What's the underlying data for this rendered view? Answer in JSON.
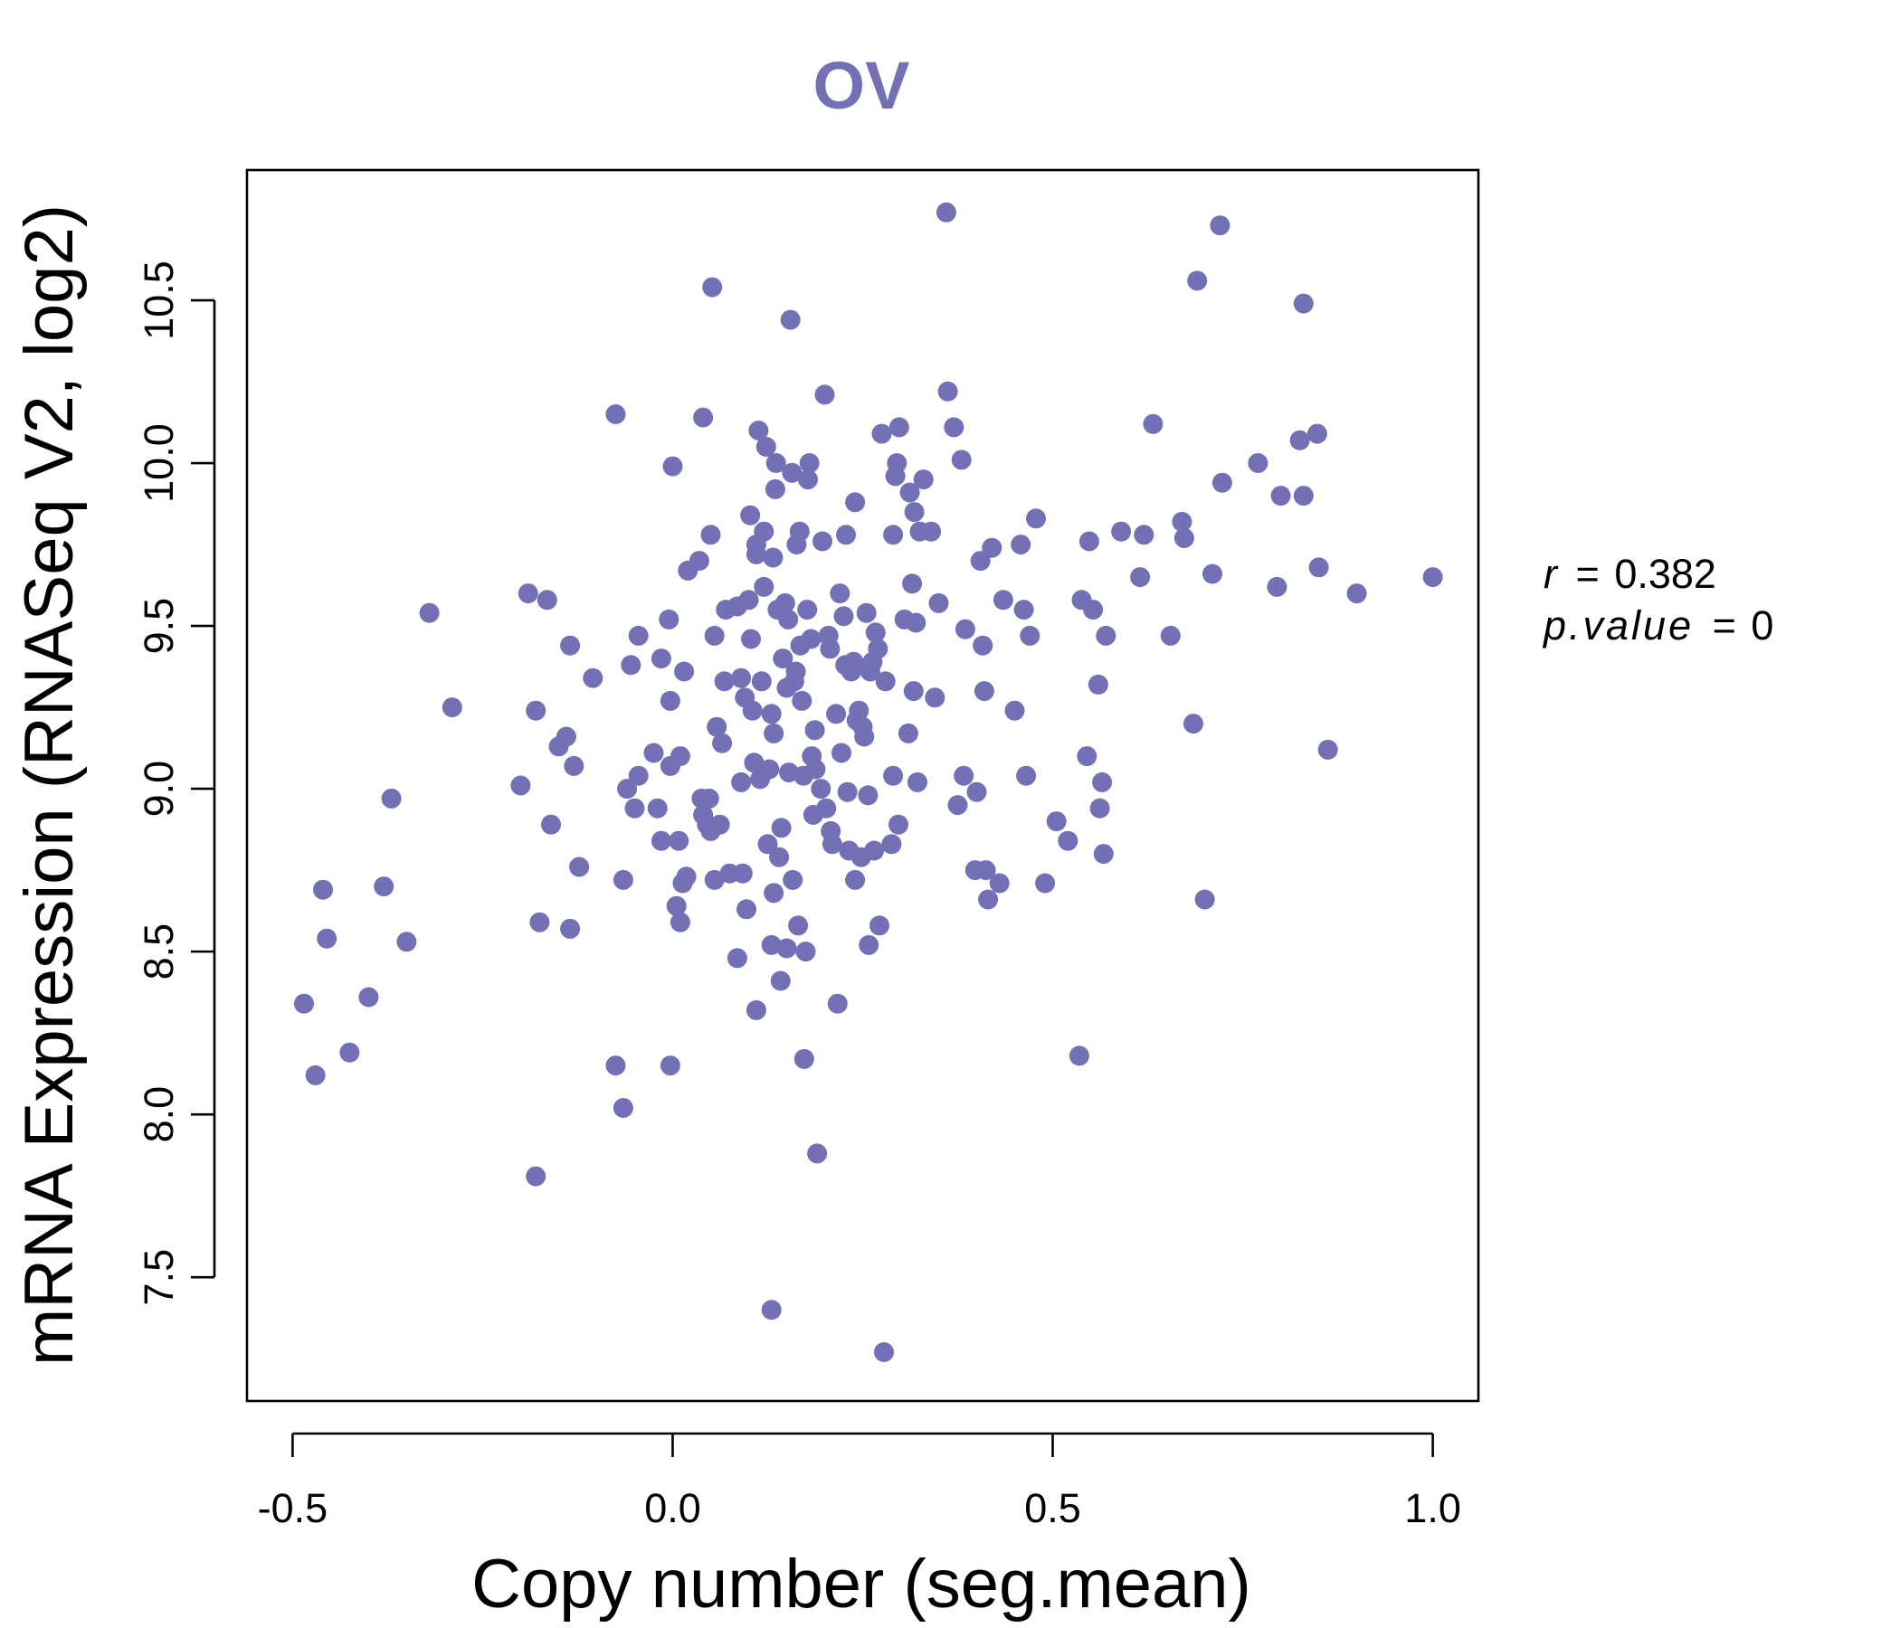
{
  "colors": {
    "accent": "#7470b5",
    "axis": "#000000",
    "background": "#ffffff"
  },
  "stats": {
    "r_label": "r",
    "r_value": "0.382",
    "p_label": "p.value",
    "p_value": "0"
  },
  "chart_data": {
    "type": "scatter",
    "title": "OV",
    "xlabel": "Copy number (seg.mean)",
    "ylabel": "mRNA Expression (RNASeq V2, log2)",
    "xlim": [
      -0.56,
      1.06
    ],
    "ylim": [
      7.12,
      10.9
    ],
    "x_ticks": [
      -0.5,
      0.0,
      0.5,
      1.0
    ],
    "x_tick_labels": [
      "-0.5",
      "0.0",
      "0.5",
      "1.0"
    ],
    "y_ticks": [
      7.5,
      8.0,
      8.5,
      9.0,
      9.5,
      10.0,
      10.5
    ],
    "y_tick_labels": [
      "7.5",
      "8.0",
      "8.5",
      "9.0",
      "9.5",
      "10.0",
      "10.5"
    ],
    "grid": false,
    "points": [
      [
        -0.485,
        8.34
      ],
      [
        -0.47,
        8.12
      ],
      [
        -0.46,
        8.69
      ],
      [
        -0.455,
        8.54
      ],
      [
        -0.425,
        8.19
      ],
      [
        -0.4,
        8.36
      ],
      [
        -0.38,
        8.7
      ],
      [
        -0.37,
        8.97
      ],
      [
        -0.35,
        8.53
      ],
      [
        -0.32,
        9.54
      ],
      [
        -0.29,
        9.25
      ],
      [
        -0.2,
        9.01
      ],
      [
        -0.19,
        9.6
      ],
      [
        -0.18,
        9.24
      ],
      [
        -0.18,
        7.81
      ],
      [
        -0.175,
        8.59
      ],
      [
        -0.165,
        9.58
      ],
      [
        -0.16,
        8.89
      ],
      [
        -0.15,
        9.13
      ],
      [
        -0.14,
        9.16
      ],
      [
        -0.135,
        9.44
      ],
      [
        -0.135,
        8.57
      ],
      [
        -0.13,
        9.07
      ],
      [
        -0.123,
        8.76
      ],
      [
        -0.105,
        9.34
      ],
      [
        -0.075,
        10.15
      ],
      [
        -0.075,
        8.15
      ],
      [
        -0.065,
        8.72
      ],
      [
        -0.065,
        8.02
      ],
      [
        -0.055,
        9.38
      ],
      [
        -0.06,
        9.0
      ],
      [
        -0.05,
        8.94
      ],
      [
        -0.045,
        9.47
      ],
      [
        -0.045,
        9.04
      ],
      [
        -0.025,
        9.11
      ],
      [
        -0.02,
        8.94
      ],
      [
        -0.015,
        9.4
      ],
      [
        -0.015,
        8.84
      ],
      [
        -0.005,
        9.52
      ],
      [
        -0.003,
        9.27
      ],
      [
        -0.003,
        9.07
      ],
      [
        -0.003,
        8.15
      ],
      [
        0.0,
        9.99
      ],
      [
        0.005,
        8.64
      ],
      [
        0.008,
        8.84
      ],
      [
        0.01,
        9.1
      ],
      [
        0.01,
        8.59
      ],
      [
        0.013,
        8.71
      ],
      [
        0.015,
        9.36
      ],
      [
        0.018,
        8.73
      ],
      [
        0.02,
        9.67
      ],
      [
        0.035,
        9.7
      ],
      [
        0.04,
        10.14
      ],
      [
        0.038,
        8.97
      ],
      [
        0.04,
        8.92
      ],
      [
        0.045,
        8.89
      ],
      [
        0.048,
        8.97
      ],
      [
        0.05,
        9.78
      ],
      [
        0.05,
        8.87
      ],
      [
        0.052,
        10.54
      ],
      [
        0.055,
        9.47
      ],
      [
        0.055,
        8.72
      ],
      [
        0.058,
        9.19
      ],
      [
        0.062,
        8.89
      ],
      [
        0.065,
        9.14
      ],
      [
        0.068,
        9.33
      ],
      [
        0.07,
        9.55
      ],
      [
        0.075,
        8.74
      ],
      [
        0.085,
        9.56
      ],
      [
        0.085,
        8.48
      ],
      [
        0.09,
        9.34
      ],
      [
        0.09,
        9.02
      ],
      [
        0.092,
        8.74
      ],
      [
        0.095,
        9.28
      ],
      [
        0.097,
        8.63
      ],
      [
        0.1,
        9.58
      ],
      [
        0.102,
        9.84
      ],
      [
        0.103,
        9.46
      ],
      [
        0.105,
        9.24
      ],
      [
        0.107,
        9.08
      ],
      [
        0.11,
        9.72
      ],
      [
        0.11,
        9.75
      ],
      [
        0.11,
        8.32
      ],
      [
        0.113,
        10.1
      ],
      [
        0.115,
        9.03
      ],
      [
        0.117,
        9.33
      ],
      [
        0.12,
        9.79
      ],
      [
        0.12,
        9.62
      ],
      [
        0.123,
        10.05
      ],
      [
        0.125,
        8.83
      ],
      [
        0.127,
        9.06
      ],
      [
        0.13,
        9.23
      ],
      [
        0.13,
        8.52
      ],
      [
        0.13,
        7.4
      ],
      [
        0.132,
        9.71
      ],
      [
        0.133,
        9.17
      ],
      [
        0.133,
        8.68
      ],
      [
        0.135,
        9.92
      ],
      [
        0.136,
        10.0
      ],
      [
        0.138,
        9.55
      ],
      [
        0.14,
        8.79
      ],
      [
        0.142,
        8.41
      ],
      [
        0.143,
        8.88
      ],
      [
        0.145,
        9.4
      ],
      [
        0.148,
        9.57
      ],
      [
        0.15,
        9.31
      ],
      [
        0.15,
        8.51
      ],
      [
        0.152,
        9.52
      ],
      [
        0.153,
        9.05
      ],
      [
        0.155,
        10.44
      ],
      [
        0.157,
        9.97
      ],
      [
        0.158,
        8.72
      ],
      [
        0.16,
        9.33
      ],
      [
        0.162,
        9.36
      ],
      [
        0.163,
        9.75
      ],
      [
        0.165,
        8.58
      ],
      [
        0.167,
        9.79
      ],
      [
        0.168,
        9.44
      ],
      [
        0.17,
        9.27
      ],
      [
        0.172,
        9.04
      ],
      [
        0.173,
        8.17
      ],
      [
        0.175,
        8.5
      ],
      [
        0.177,
        9.55
      ],
      [
        0.178,
        9.95
      ],
      [
        0.18,
        10.0
      ],
      [
        0.182,
        9.46
      ],
      [
        0.183,
        9.1
      ],
      [
        0.185,
        8.92
      ],
      [
        0.187,
        9.18
      ],
      [
        0.188,
        9.06
      ],
      [
        0.19,
        7.88
      ],
      [
        0.195,
        9.0
      ],
      [
        0.197,
        9.76
      ],
      [
        0.2,
        10.21
      ],
      [
        0.202,
        8.94
      ],
      [
        0.205,
        9.47
      ],
      [
        0.207,
        9.43
      ],
      [
        0.208,
        8.87
      ],
      [
        0.21,
        8.83
      ],
      [
        0.215,
        9.23
      ],
      [
        0.217,
        8.34
      ],
      [
        0.22,
        9.6
      ],
      [
        0.222,
        9.11
      ],
      [
        0.225,
        9.53
      ],
      [
        0.227,
        9.38
      ],
      [
        0.228,
        9.78
      ],
      [
        0.23,
        8.99
      ],
      [
        0.232,
        8.81
      ],
      [
        0.235,
        9.36
      ],
      [
        0.238,
        9.39
      ],
      [
        0.24,
        9.88
      ],
      [
        0.24,
        8.72
      ],
      [
        0.242,
        9.21
      ],
      [
        0.245,
        9.24
      ],
      [
        0.248,
        8.79
      ],
      [
        0.25,
        9.19
      ],
      [
        0.252,
        9.16
      ],
      [
        0.255,
        9.54
      ],
      [
        0.257,
        8.98
      ],
      [
        0.258,
        8.52
      ],
      [
        0.26,
        9.36
      ],
      [
        0.263,
        9.39
      ],
      [
        0.265,
        8.81
      ],
      [
        0.267,
        9.48
      ],
      [
        0.27,
        9.43
      ],
      [
        0.272,
        8.58
      ],
      [
        0.275,
        10.09
      ],
      [
        0.278,
        7.27
      ],
      [
        0.28,
        9.33
      ],
      [
        0.288,
        8.83
      ],
      [
        0.29,
        9.78
      ],
      [
        0.29,
        9.04
      ],
      [
        0.293,
        9.96
      ],
      [
        0.295,
        10.0
      ],
      [
        0.297,
        8.89
      ],
      [
        0.298,
        10.11
      ],
      [
        0.305,
        9.52
      ],
      [
        0.31,
        9.17
      ],
      [
        0.312,
        9.91
      ],
      [
        0.315,
        9.63
      ],
      [
        0.317,
        9.3
      ],
      [
        0.318,
        9.85
      ],
      [
        0.32,
        9.51
      ],
      [
        0.322,
        9.02
      ],
      [
        0.325,
        9.79
      ],
      [
        0.33,
        9.95
      ],
      [
        0.34,
        9.79
      ],
      [
        0.345,
        9.28
      ],
      [
        0.35,
        9.57
      ],
      [
        0.36,
        10.77
      ],
      [
        0.362,
        10.22
      ],
      [
        0.37,
        10.11
      ],
      [
        0.375,
        8.95
      ],
      [
        0.38,
        10.01
      ],
      [
        0.383,
        9.04
      ],
      [
        0.385,
        9.49
      ],
      [
        0.398,
        8.75
      ],
      [
        0.4,
        8.99
      ],
      [
        0.405,
        9.7
      ],
      [
        0.408,
        9.44
      ],
      [
        0.41,
        9.3
      ],
      [
        0.412,
        8.75
      ],
      [
        0.415,
        8.66
      ],
      [
        0.42,
        9.74
      ],
      [
        0.43,
        8.71
      ],
      [
        0.435,
        9.58
      ],
      [
        0.45,
        9.24
      ],
      [
        0.458,
        9.75
      ],
      [
        0.462,
        9.55
      ],
      [
        0.465,
        9.04
      ],
      [
        0.47,
        9.47
      ],
      [
        0.478,
        9.83
      ],
      [
        0.49,
        8.71
      ],
      [
        0.505,
        8.9
      ],
      [
        0.52,
        8.84
      ],
      [
        0.535,
        8.18
      ],
      [
        0.538,
        9.58
      ],
      [
        0.545,
        9.1
      ],
      [
        0.548,
        9.76
      ],
      [
        0.553,
        9.55
      ],
      [
        0.56,
        9.32
      ],
      [
        0.562,
        8.94
      ],
      [
        0.565,
        9.02
      ],
      [
        0.567,
        8.8
      ],
      [
        0.57,
        9.47
      ],
      [
        0.59,
        9.79
      ],
      [
        0.615,
        9.65
      ],
      [
        0.62,
        9.78
      ],
      [
        0.632,
        10.12
      ],
      [
        0.655,
        9.47
      ],
      [
        0.67,
        9.82
      ],
      [
        0.673,
        9.77
      ],
      [
        0.685,
        9.2
      ],
      [
        0.69,
        10.56
      ],
      [
        0.7,
        8.66
      ],
      [
        0.71,
        9.66
      ],
      [
        0.72,
        10.73
      ],
      [
        0.723,
        9.94
      ],
      [
        0.77,
        10.0
      ],
      [
        0.795,
        9.62
      ],
      [
        0.8,
        9.9
      ],
      [
        0.825,
        10.07
      ],
      [
        0.83,
        10.49
      ],
      [
        0.83,
        9.9
      ],
      [
        0.848,
        10.09
      ],
      [
        0.85,
        9.68
      ],
      [
        0.862,
        9.12
      ],
      [
        0.9,
        9.6
      ],
      [
        1.0,
        9.65
      ]
    ]
  }
}
